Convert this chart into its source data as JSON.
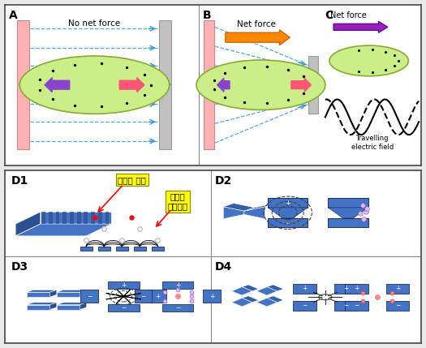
{
  "fig_width": 5.25,
  "fig_height": 4.29,
  "dpi": 100,
  "bg_color": "#e8e8e8",
  "border_color": "#444444",
  "section_A_label": "A",
  "section_B_label": "B",
  "section_C_label": "C",
  "section_D1_label": "D1",
  "section_D2_label": "D2",
  "section_D3_label": "D3",
  "section_D4_label": "D4",
  "text_no_net_force": "No net force",
  "text_net_force": "Net force",
  "text_travelling": "Travelling\nelectric field",
  "text_particle_sep": "입자의 분리",
  "text_nonuniform": "비균질\n전기력선",
  "electrode_pink": "#ffb0b0",
  "electrode_gray": "#c0c0c0",
  "electrode_blue": "#4472c4",
  "electrode_blue_dark": "#2a5090",
  "electrode_blue_mid": "#3060a8",
  "arrow_blue": "#3399dd",
  "arrow_orange": "#ff8800",
  "arrow_purple": "#8844cc",
  "arrow_pink": "#ff5577",
  "cell_fill": "#ccee88",
  "cell_edge": "#88aa33",
  "yellow_bg": "#ffff00",
  "white": "#ffffff",
  "black": "#000000"
}
